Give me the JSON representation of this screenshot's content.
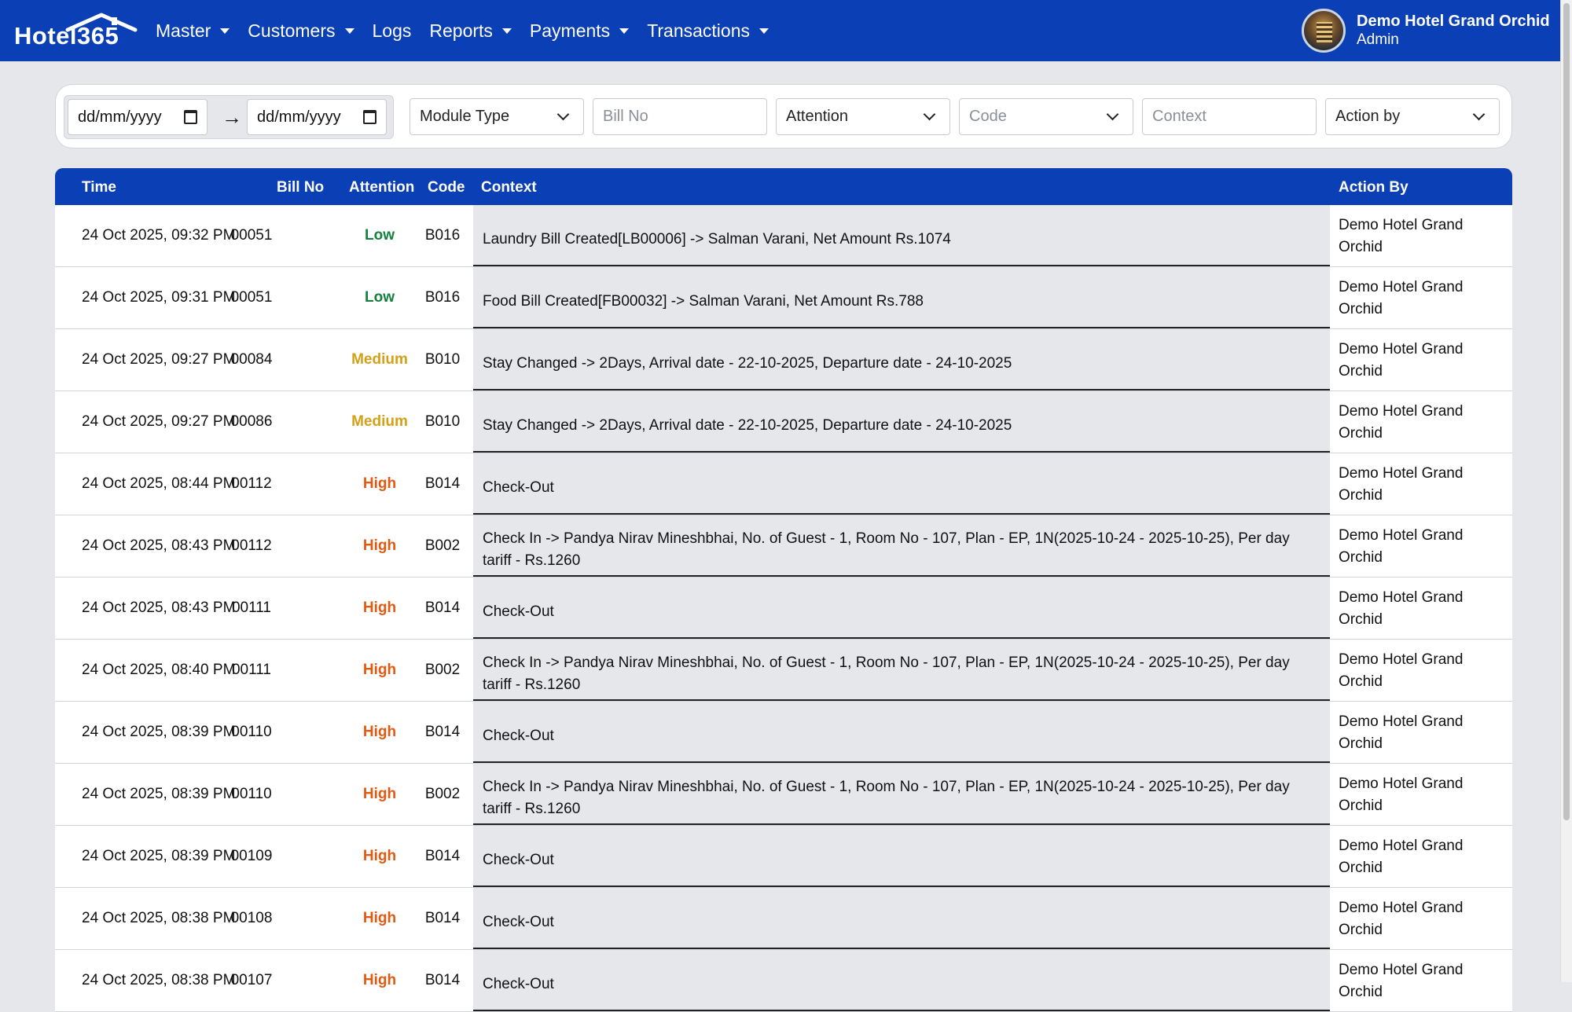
{
  "app": {
    "logo_text": "Hotel365",
    "nav": [
      {
        "label": "Master",
        "dropdown": true
      },
      {
        "label": "Customers",
        "dropdown": true
      },
      {
        "label": "Logs",
        "dropdown": false
      },
      {
        "label": "Reports",
        "dropdown": true
      },
      {
        "label": "Payments",
        "dropdown": true
      },
      {
        "label": "Transactions",
        "dropdown": true
      }
    ],
    "user": {
      "name": "Demo Hotel Grand Orchid",
      "role": "Admin"
    }
  },
  "filters": {
    "date_from_placeholder": "dd/mm/yyyy",
    "date_to_placeholder": "dd/mm/yyyy",
    "arrow": "→",
    "module_type": "Module Type",
    "bill_no_placeholder": "Bill No",
    "attention": "Attention",
    "code": "Code",
    "context_placeholder": "Context",
    "action_by": "Action by"
  },
  "table": {
    "headers": {
      "time": "Time",
      "bill": "Bill No",
      "attention": "Attention",
      "code": "Code",
      "context": "Context",
      "action_by": "Action By"
    },
    "rows": [
      {
        "time": "24 Oct 2025, 09:32 PM",
        "bill": "00051",
        "attention": "Low",
        "code": "B016",
        "context": "Laundry Bill Created[LB00006] -> Salman Varani, Net Amount Rs.1074",
        "by": "Demo Hotel Grand Orchid"
      },
      {
        "time": "24 Oct 2025, 09:31 PM",
        "bill": "00051",
        "attention": "Low",
        "code": "B016",
        "context": "Food Bill Created[FB00032] -> Salman Varani, Net Amount Rs.788",
        "by": "Demo Hotel Grand Orchid"
      },
      {
        "time": "24 Oct 2025, 09:27 PM",
        "bill": "00084",
        "attention": "Medium",
        "code": "B010",
        "context": "Stay Changed -> 2Days, Arrival date - 22-10-2025, Departure date - 24-10-2025",
        "by": "Demo Hotel Grand Orchid"
      },
      {
        "time": "24 Oct 2025, 09:27 PM",
        "bill": "00086",
        "attention": "Medium",
        "code": "B010",
        "context": "Stay Changed -> 2Days, Arrival date - 22-10-2025, Departure date - 24-10-2025",
        "by": "Demo Hotel Grand Orchid"
      },
      {
        "time": "24 Oct 2025, 08:44 PM",
        "bill": "00112",
        "attention": "High",
        "code": "B014",
        "context": "Check-Out",
        "by": "Demo Hotel Grand Orchid"
      },
      {
        "time": "24 Oct 2025, 08:43 PM",
        "bill": "00112",
        "attention": "High",
        "code": "B002",
        "context": "Check In -> Pandya Nirav Mineshbhai, No. of Guest - 1, Room No - 107, Plan - EP, 1N(2025-10-24 - 2025-10-25), Per day tariff - Rs.1260",
        "by": "Demo Hotel Grand Orchid"
      },
      {
        "time": "24 Oct 2025, 08:43 PM",
        "bill": "00111",
        "attention": "High",
        "code": "B014",
        "context": "Check-Out",
        "by": "Demo Hotel Grand Orchid"
      },
      {
        "time": "24 Oct 2025, 08:40 PM",
        "bill": "00111",
        "attention": "High",
        "code": "B002",
        "context": "Check In -> Pandya Nirav Mineshbhai, No. of Guest - 1, Room No - 107, Plan - EP, 1N(2025-10-24 - 2025-10-25), Per day tariff - Rs.1260",
        "by": "Demo Hotel Grand Orchid"
      },
      {
        "time": "24 Oct 2025, 08:39 PM",
        "bill": "00110",
        "attention": "High",
        "code": "B014",
        "context": "Check-Out",
        "by": "Demo Hotel Grand Orchid"
      },
      {
        "time": "24 Oct 2025, 08:39 PM",
        "bill": "00110",
        "attention": "High",
        "code": "B002",
        "context": "Check In -> Pandya Nirav Mineshbhai, No. of Guest - 1, Room No - 107, Plan - EP, 1N(2025-10-24 - 2025-10-25), Per day tariff - Rs.1260",
        "by": "Demo Hotel Grand Orchid"
      },
      {
        "time": "24 Oct 2025, 08:39 PM",
        "bill": "00109",
        "attention": "High",
        "code": "B014",
        "context": "Check-Out",
        "by": "Demo Hotel Grand Orchid"
      },
      {
        "time": "24 Oct 2025, 08:38 PM",
        "bill": "00108",
        "attention": "High",
        "code": "B014",
        "context": "Check-Out",
        "by": "Demo Hotel Grand Orchid"
      },
      {
        "time": "24 Oct 2025, 08:38 PM",
        "bill": "00107",
        "attention": "High",
        "code": "B014",
        "context": "Check-Out",
        "by": "Demo Hotel Grand Orchid"
      }
    ]
  }
}
